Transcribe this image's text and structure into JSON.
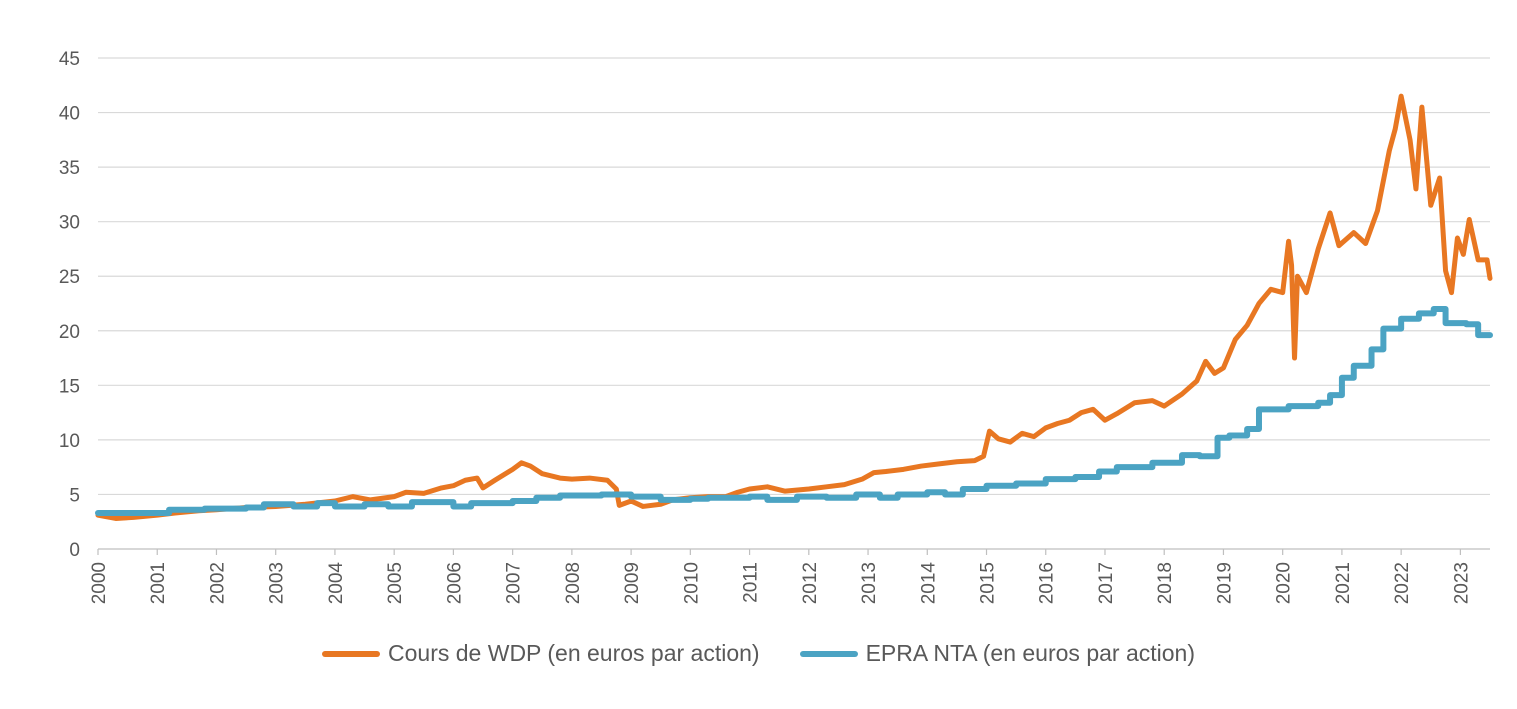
{
  "chart_data": {
    "type": "line",
    "title": "",
    "xlabel": "",
    "ylabel": "",
    "ylim": [
      0,
      45
    ],
    "xlim": [
      2000,
      2023.5
    ],
    "y_ticks": [
      "0",
      "5",
      "10",
      "15",
      "20",
      "25",
      "30",
      "35",
      "40",
      "45"
    ],
    "x_ticks": [
      "2000",
      "2001",
      "2002",
      "2003",
      "2004",
      "2005",
      "2006",
      "2007",
      "2008",
      "2009",
      "2010",
      "2011",
      "2012",
      "2013",
      "2014",
      "2015",
      "2016",
      "2017",
      "2018",
      "2019",
      "2020",
      "2021",
      "2022",
      "2023"
    ],
    "grid": true,
    "legend_position": "bottom",
    "series": [
      {
        "name": "Cours de WDP (en euros par action)",
        "color": "#E87722",
        "style": "line",
        "points": [
          [
            2000.0,
            3.1
          ],
          [
            2000.3,
            2.8
          ],
          [
            2000.6,
            2.9
          ],
          [
            2001.0,
            3.1
          ],
          [
            2001.3,
            3.3
          ],
          [
            2001.7,
            3.5
          ],
          [
            2002.0,
            3.6
          ],
          [
            2002.5,
            3.8
          ],
          [
            2003.0,
            3.9
          ],
          [
            2003.5,
            4.1
          ],
          [
            2004.0,
            4.4
          ],
          [
            2004.3,
            4.8
          ],
          [
            2004.6,
            4.5
          ],
          [
            2005.0,
            4.8
          ],
          [
            2005.2,
            5.2
          ],
          [
            2005.5,
            5.1
          ],
          [
            2005.8,
            5.6
          ],
          [
            2006.0,
            5.8
          ],
          [
            2006.2,
            6.3
          ],
          [
            2006.4,
            6.5
          ],
          [
            2006.5,
            5.6
          ],
          [
            2006.7,
            6.3
          ],
          [
            2007.0,
            7.3
          ],
          [
            2007.15,
            7.9
          ],
          [
            2007.3,
            7.6
          ],
          [
            2007.5,
            6.9
          ],
          [
            2007.8,
            6.5
          ],
          [
            2008.0,
            6.4
          ],
          [
            2008.3,
            6.5
          ],
          [
            2008.6,
            6.3
          ],
          [
            2008.75,
            5.5
          ],
          [
            2008.8,
            4.0
          ],
          [
            2009.0,
            4.4
          ],
          [
            2009.2,
            3.9
          ],
          [
            2009.5,
            4.1
          ],
          [
            2009.7,
            4.5
          ],
          [
            2010.0,
            4.7
          ],
          [
            2010.3,
            4.8
          ],
          [
            2010.6,
            4.8
          ],
          [
            2010.8,
            5.2
          ],
          [
            2011.0,
            5.5
          ],
          [
            2011.3,
            5.7
          ],
          [
            2011.6,
            5.3
          ],
          [
            2012.0,
            5.5
          ],
          [
            2012.3,
            5.7
          ],
          [
            2012.6,
            5.9
          ],
          [
            2012.9,
            6.4
          ],
          [
            2013.1,
            7.0
          ],
          [
            2013.3,
            7.1
          ],
          [
            2013.6,
            7.3
          ],
          [
            2013.9,
            7.6
          ],
          [
            2014.2,
            7.8
          ],
          [
            2014.5,
            8.0
          ],
          [
            2014.8,
            8.1
          ],
          [
            2014.95,
            8.5
          ],
          [
            2015.05,
            10.8
          ],
          [
            2015.2,
            10.1
          ],
          [
            2015.4,
            9.8
          ],
          [
            2015.6,
            10.6
          ],
          [
            2015.8,
            10.3
          ],
          [
            2016.0,
            11.1
          ],
          [
            2016.2,
            11.5
          ],
          [
            2016.4,
            11.8
          ],
          [
            2016.6,
            12.5
          ],
          [
            2016.8,
            12.8
          ],
          [
            2017.0,
            11.8
          ],
          [
            2017.2,
            12.4
          ],
          [
            2017.5,
            13.4
          ],
          [
            2017.8,
            13.6
          ],
          [
            2018.0,
            13.1
          ],
          [
            2018.3,
            14.2
          ],
          [
            2018.55,
            15.4
          ],
          [
            2018.7,
            17.2
          ],
          [
            2018.85,
            16.1
          ],
          [
            2019.0,
            16.6
          ],
          [
            2019.2,
            19.2
          ],
          [
            2019.4,
            20.5
          ],
          [
            2019.6,
            22.5
          ],
          [
            2019.8,
            23.8
          ],
          [
            2020.0,
            23.5
          ],
          [
            2020.1,
            28.2
          ],
          [
            2020.15,
            26.0
          ],
          [
            2020.2,
            17.5
          ],
          [
            2020.25,
            25.0
          ],
          [
            2020.4,
            23.5
          ],
          [
            2020.6,
            27.5
          ],
          [
            2020.8,
            30.8
          ],
          [
            2020.95,
            27.8
          ],
          [
            2021.2,
            29.0
          ],
          [
            2021.4,
            28.0
          ],
          [
            2021.6,
            31.0
          ],
          [
            2021.8,
            36.5
          ],
          [
            2021.9,
            38.5
          ],
          [
            2022.0,
            41.5
          ],
          [
            2022.15,
            37.5
          ],
          [
            2022.25,
            33.0
          ],
          [
            2022.35,
            40.5
          ],
          [
            2022.5,
            31.5
          ],
          [
            2022.65,
            34.0
          ],
          [
            2022.75,
            25.5
          ],
          [
            2022.85,
            23.5
          ],
          [
            2022.95,
            28.5
          ],
          [
            2023.05,
            27.0
          ],
          [
            2023.15,
            30.2
          ],
          [
            2023.3,
            26.5
          ],
          [
            2023.45,
            26.5
          ],
          [
            2023.5,
            24.8
          ]
        ]
      },
      {
        "name": "EPRA NTA (en euros par action)",
        "color": "#4BA3C3",
        "style": "step",
        "points": [
          [
            2000.0,
            3.3
          ],
          [
            2001.2,
            3.6
          ],
          [
            2001.8,
            3.7
          ],
          [
            2002.5,
            3.8
          ],
          [
            2002.8,
            4.1
          ],
          [
            2003.3,
            3.9
          ],
          [
            2003.7,
            4.2
          ],
          [
            2004.0,
            3.9
          ],
          [
            2004.5,
            4.1
          ],
          [
            2004.9,
            3.9
          ],
          [
            2005.3,
            4.3
          ],
          [
            2006.0,
            3.9
          ],
          [
            2006.3,
            4.2
          ],
          [
            2007.0,
            4.4
          ],
          [
            2007.4,
            4.7
          ],
          [
            2007.8,
            4.9
          ],
          [
            2008.5,
            5.0
          ],
          [
            2009.0,
            4.8
          ],
          [
            2009.5,
            4.5
          ],
          [
            2010.0,
            4.6
          ],
          [
            2010.3,
            4.7
          ],
          [
            2011.0,
            4.8
          ],
          [
            2011.3,
            4.5
          ],
          [
            2011.8,
            4.8
          ],
          [
            2012.3,
            4.7
          ],
          [
            2012.8,
            5.0
          ],
          [
            2013.2,
            4.7
          ],
          [
            2013.5,
            5.0
          ],
          [
            2014.0,
            5.2
          ],
          [
            2014.3,
            5.0
          ],
          [
            2014.6,
            5.5
          ],
          [
            2015.0,
            5.8
          ],
          [
            2015.5,
            6.0
          ],
          [
            2016.0,
            6.4
          ],
          [
            2016.5,
            6.6
          ],
          [
            2016.9,
            7.1
          ],
          [
            2017.2,
            7.5
          ],
          [
            2017.8,
            7.9
          ],
          [
            2018.3,
            8.6
          ],
          [
            2018.6,
            8.5
          ],
          [
            2018.9,
            10.2
          ],
          [
            2019.1,
            10.4
          ],
          [
            2019.4,
            11.0
          ],
          [
            2019.6,
            12.8
          ],
          [
            2020.1,
            13.1
          ],
          [
            2020.6,
            13.4
          ],
          [
            2020.8,
            14.1
          ],
          [
            2021.0,
            15.7
          ],
          [
            2021.2,
            16.8
          ],
          [
            2021.5,
            18.3
          ],
          [
            2021.7,
            20.2
          ],
          [
            2022.0,
            21.1
          ],
          [
            2022.3,
            21.6
          ],
          [
            2022.55,
            22.0
          ],
          [
            2022.75,
            20.7
          ],
          [
            2023.1,
            20.6
          ],
          [
            2023.3,
            19.6
          ],
          [
            2023.5,
            19.6
          ]
        ]
      }
    ]
  }
}
